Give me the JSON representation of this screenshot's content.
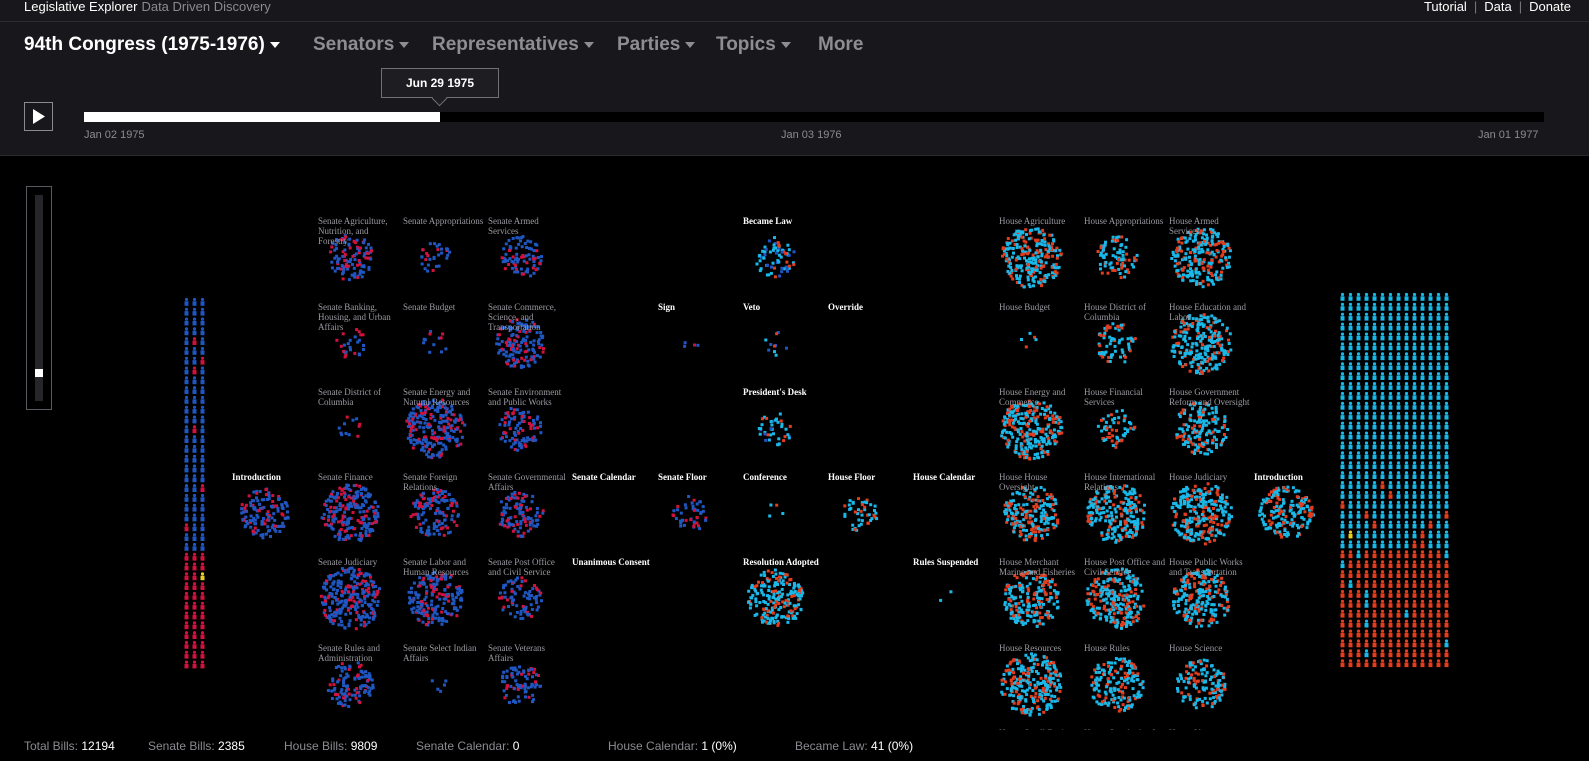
{
  "app": {
    "title": "Legislative Explorer",
    "subtitle": "Data Driven Discovery"
  },
  "toplinks": [
    "Tutorial",
    "Data",
    "Donate"
  ],
  "nav": [
    {
      "label": "94th Congress (1975-1976)",
      "active": true
    },
    {
      "label": "Senators",
      "active": false
    },
    {
      "label": "Representatives",
      "active": false
    },
    {
      "label": "Parties",
      "active": false
    },
    {
      "label": "Topics",
      "active": false
    },
    {
      "label": "More",
      "active": false
    }
  ],
  "timeline": {
    "current_date": "Jun 29 1975",
    "progress": 0.244,
    "ticks": [
      "Jan 02 1975",
      "Jan 03 1976",
      "Jan 01 1977"
    ]
  },
  "zoom": {
    "level": 0.88
  },
  "colors": {
    "democrat_senate": "#1f57c2",
    "republican_senate": "#d3113e",
    "democrat_house": "#19b8e8",
    "republican_house": "#e23d1e",
    "independent": "#e8d01c"
  },
  "stages": [
    {
      "id": "senate-introduction",
      "label": "Introduction",
      "style": "white",
      "density": 0.55,
      "palette": "senate"
    },
    {
      "id": "senate-agriculture",
      "label": "Senate Agriculture, Nutrition, and Forestry",
      "style": "grey",
      "density": 0.45,
      "palette": "senate"
    },
    {
      "id": "senate-appropriations",
      "label": "Senate Appropriations",
      "style": "grey",
      "density": 0.15,
      "palette": "senate"
    },
    {
      "id": "senate-armed-services",
      "label": "Senate Armed Services",
      "style": "grey",
      "density": 0.35,
      "palette": "senate"
    },
    {
      "id": "senate-banking",
      "label": "Senate Banking, Housing, and Urban Affairs",
      "style": "grey",
      "density": 0.12,
      "palette": "senate"
    },
    {
      "id": "senate-budget",
      "label": "Senate Budget",
      "style": "grey",
      "density": 0.06,
      "palette": "senate"
    },
    {
      "id": "senate-commerce",
      "label": "Senate Commerce, Science, and Transportation",
      "style": "grey",
      "density": 0.55,
      "palette": "senate"
    },
    {
      "id": "senate-dc",
      "label": "Senate District of Columbia",
      "style": "grey",
      "density": 0.06,
      "palette": "senate"
    },
    {
      "id": "senate-energy",
      "label": "Senate Energy and Natural Resources",
      "style": "grey",
      "density": 0.9,
      "palette": "senate"
    },
    {
      "id": "senate-environment",
      "label": "Senate Environment and Public Works",
      "style": "grey",
      "density": 0.4,
      "palette": "senate"
    },
    {
      "id": "senate-finance",
      "label": "Senate Finance",
      "style": "grey",
      "density": 0.85,
      "palette": "senate"
    },
    {
      "id": "senate-foreign",
      "label": "Senate Foreign Relations",
      "style": "grey",
      "density": 0.55,
      "palette": "senate"
    },
    {
      "id": "senate-gov-affairs",
      "label": "Senate Governmental Affairs",
      "style": "grey",
      "density": 0.45,
      "palette": "senate"
    },
    {
      "id": "senate-judiciary",
      "label": "Senate Judiciary",
      "style": "grey",
      "density": 1.0,
      "palette": "senate"
    },
    {
      "id": "senate-labor",
      "label": "Senate Labor and Human Resources",
      "style": "grey",
      "density": 0.75,
      "palette": "senate"
    },
    {
      "id": "senate-post-office",
      "label": "Senate Post Office and Civil Service",
      "style": "grey",
      "density": 0.35,
      "palette": "senate"
    },
    {
      "id": "senate-rules",
      "label": "Senate Rules and Administration",
      "style": "grey",
      "density": 0.45,
      "palette": "senate"
    },
    {
      "id": "senate-indian",
      "label": "Senate Select Indian Affairs",
      "style": "grey",
      "density": 0.03,
      "palette": "senate"
    },
    {
      "id": "senate-veterans",
      "label": "Senate Veterans Affairs",
      "style": "grey",
      "density": 0.35,
      "palette": "senate"
    },
    {
      "id": "senate-calendar",
      "label": "Senate Calendar",
      "style": "white",
      "density": 0.0,
      "palette": "senate"
    },
    {
      "id": "unanimous-consent",
      "label": "Unanimous Consent",
      "style": "white",
      "density": 0.0,
      "palette": "senate"
    },
    {
      "id": "sign",
      "label": "Sign",
      "style": "white",
      "density": 0.02,
      "palette": "senate"
    },
    {
      "id": "senate-floor",
      "label": "Senate Floor",
      "style": "white",
      "density": 0.2,
      "palette": "senate"
    },
    {
      "id": "became-law",
      "label": "Became Law",
      "style": "white",
      "density": 0.3,
      "palette": "mixed"
    },
    {
      "id": "veto",
      "label": "Veto",
      "style": "white",
      "density": 0.05,
      "palette": "mixed"
    },
    {
      "id": "presidents-desk",
      "label": "President's Desk",
      "style": "white",
      "density": 0.18,
      "palette": "mixed"
    },
    {
      "id": "conference",
      "label": "Conference",
      "style": "white",
      "density": 0.02,
      "palette": "house"
    },
    {
      "id": "resolution-adopted",
      "label": "Resolution Adopted",
      "style": "white",
      "density": 0.8,
      "palette": "house"
    },
    {
      "id": "override",
      "label": "Override",
      "style": "white",
      "density": 0.0,
      "palette": "house"
    },
    {
      "id": "house-floor",
      "label": "House Floor",
      "style": "white",
      "density": 0.2,
      "palette": "house"
    },
    {
      "id": "house-calendar",
      "label": "House Calendar",
      "style": "white",
      "density": 0.0,
      "palette": "house"
    },
    {
      "id": "rules-suspended",
      "label": "Rules Suspended",
      "style": "white",
      "density": 0.01,
      "palette": "house"
    },
    {
      "id": "house-agriculture",
      "label": "House Agriculture",
      "style": "grey",
      "density": 0.95,
      "palette": "house"
    },
    {
      "id": "house-appropriations",
      "label": "House Appropriations",
      "style": "grey",
      "density": 0.35,
      "palette": "house"
    },
    {
      "id": "house-armed-services",
      "label": "House Armed Services",
      "style": "grey",
      "density": 0.9,
      "palette": "house"
    },
    {
      "id": "house-budget",
      "label": "House Budget",
      "style": "grey",
      "density": 0.03,
      "palette": "house"
    },
    {
      "id": "house-dc",
      "label": "House District of Columbia",
      "style": "grey",
      "density": 0.3,
      "palette": "house"
    },
    {
      "id": "house-education",
      "label": "House Education and Labor",
      "style": "grey",
      "density": 0.95,
      "palette": "house"
    },
    {
      "id": "house-energy",
      "label": "House Energy and Commerce",
      "style": "grey",
      "density": 1.0,
      "palette": "house"
    },
    {
      "id": "house-financial",
      "label": "House Financial Services",
      "style": "grey",
      "density": 0.25,
      "palette": "house"
    },
    {
      "id": "house-gov-reform",
      "label": "House Government Reform and Oversight",
      "style": "grey",
      "density": 0.65,
      "palette": "house"
    },
    {
      "id": "house-admin",
      "label": "House House Oversight",
      "style": "grey",
      "density": 0.75,
      "palette": "house"
    },
    {
      "id": "house-intl",
      "label": "House International Relations",
      "style": "grey",
      "density": 0.9,
      "palette": "house"
    },
    {
      "id": "house-judiciary",
      "label": "House Judiciary",
      "style": "grey",
      "density": 1.0,
      "palette": "house"
    },
    {
      "id": "house-introduction",
      "label": "Introduction",
      "style": "white",
      "density": 0.7,
      "palette": "house"
    },
    {
      "id": "house-merchant",
      "label": "House Merchant Marine and Fisheries",
      "style": "grey",
      "density": 0.8,
      "palette": "house"
    },
    {
      "id": "house-post-office",
      "label": "House Post Office and Civil Service",
      "style": "grey",
      "density": 0.95,
      "palette": "house"
    },
    {
      "id": "house-public-works",
      "label": "House Public Works and Transportation",
      "style": "grey",
      "density": 0.85,
      "palette": "house"
    },
    {
      "id": "house-resources",
      "label": "House Resources",
      "style": "grey",
      "density": 1.0,
      "palette": "house"
    },
    {
      "id": "house-rules",
      "label": "House Rules",
      "style": "grey",
      "density": 0.7,
      "palette": "house"
    },
    {
      "id": "house-science",
      "label": "House Science",
      "style": "grey",
      "density": 0.55,
      "palette": "house"
    },
    {
      "id": "house-small-business",
      "label": "House Small Business",
      "style": "grey",
      "density": 0.0,
      "palette": "house"
    },
    {
      "id": "house-standards",
      "label": "House Standards of Official Conduct",
      "style": "grey",
      "density": 0.0,
      "palette": "house"
    },
    {
      "id": "house-veterans",
      "label": "House Veterans Affairs",
      "style": "grey",
      "density": 0.0,
      "palette": "house"
    }
  ],
  "footer": [
    {
      "label": "Total Bills:",
      "value": "12194"
    },
    {
      "label": "Senate Bills:",
      "value": "2385"
    },
    {
      "label": "House Bills:",
      "value": "9809"
    },
    {
      "label": "Senate Calendar:",
      "value": "0"
    },
    {
      "label": "House Calendar:",
      "value": "1 (0%)"
    },
    {
      "label": "Became Law:",
      "value": "41 (0%)"
    }
  ]
}
